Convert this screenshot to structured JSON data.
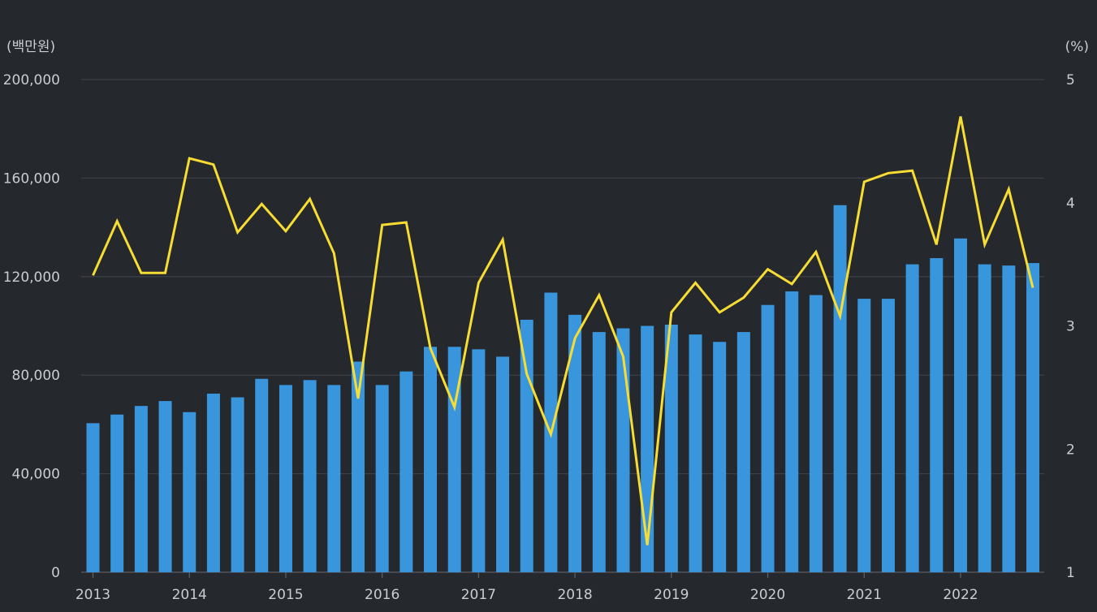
{
  "chart_data": {
    "type": "bar+line",
    "left_unit_label": "(백만원)",
    "right_unit_label": "(%)",
    "x": [
      "2013Q1",
      "2013Q2",
      "2013Q3",
      "2013Q4",
      "2014Q1",
      "2014Q2",
      "2014Q3",
      "2014Q4",
      "2015Q1",
      "2015Q2",
      "2015Q3",
      "2015Q4",
      "2016Q1",
      "2016Q2",
      "2016Q3",
      "2016Q4",
      "2017Q1",
      "2017Q2",
      "2017Q3",
      "2017Q4",
      "2018Q1",
      "2018Q2",
      "2018Q3",
      "2018Q4",
      "2019Q1",
      "2019Q2",
      "2019Q3",
      "2019Q4",
      "2020Q1",
      "2020Q2",
      "2020Q3",
      "2020Q4",
      "2021Q1",
      "2021Q2",
      "2021Q3",
      "2021Q4",
      "2022Q1",
      "2022Q2",
      "2022Q3",
      "2022Q4"
    ],
    "x_tick_labels": [
      "2013",
      "2014",
      "2015",
      "2016",
      "2017",
      "2018",
      "2019",
      "2020",
      "2021",
      "2022"
    ],
    "series": [
      {
        "type": "bar",
        "axis": "left",
        "color": "#3a96dc",
        "values": [
          60500,
          64000,
          67500,
          69500,
          65000,
          72500,
          71000,
          78500,
          76000,
          78000,
          76000,
          85500,
          76000,
          81500,
          91500,
          91500,
          90500,
          87500,
          102500,
          113500,
          104500,
          97500,
          99000,
          100000,
          100500,
          96500,
          93500,
          97500,
          108500,
          114000,
          112500,
          149000,
          111000,
          111000,
          125000,
          127500,
          135500,
          125000,
          124500,
          125500
        ]
      },
      {
        "type": "line",
        "axis": "right",
        "color": "#f7dc34",
        "values": [
          3.41,
          3.85,
          3.43,
          3.43,
          4.36,
          4.31,
          3.76,
          3.99,
          3.77,
          4.03,
          3.59,
          2.41,
          3.82,
          3.84,
          2.82,
          2.34,
          3.35,
          3.7,
          2.61,
          2.12,
          2.9,
          3.25,
          2.75,
          1.22,
          3.11,
          3.35,
          3.11,
          3.23,
          3.46,
          3.34,
          3.6,
          3.08,
          4.17,
          4.24,
          4.26,
          3.66,
          4.7,
          3.66,
          4.11,
          3.31
        ]
      }
    ],
    "left_axis": {
      "min": 0,
      "max": 200000,
      "ticks": [
        "0",
        "40,000",
        "80,000",
        "120,000",
        "160,000",
        "200,000"
      ]
    },
    "right_axis": {
      "min": 1,
      "max": 5,
      "ticks": [
        "1",
        "2",
        "3",
        "4",
        "5"
      ]
    },
    "grid": true,
    "legend": "none"
  }
}
